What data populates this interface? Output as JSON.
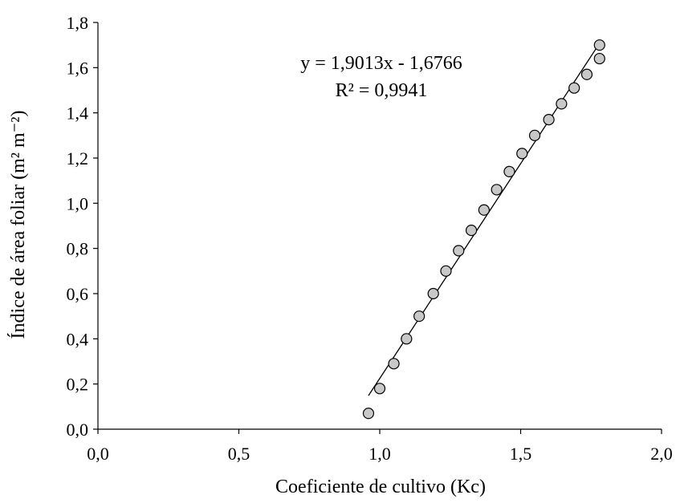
{
  "chart_data": {
    "type": "scatter",
    "xlabel": "Coeficiente de cultivo (Kc)",
    "ylabel": "Índice de área foliar (m² m⁻²)",
    "xlim": [
      0,
      2
    ],
    "ylim": [
      0,
      1.8
    ],
    "xticks": [
      0,
      0.5,
      1,
      1.5,
      2
    ],
    "xtick_labels": [
      "0,0",
      "0,5",
      "1,0",
      "1,5",
      "2,0"
    ],
    "yticks": [
      0,
      0.2,
      0.4,
      0.6,
      0.8,
      1.0,
      1.2,
      1.4,
      1.6,
      1.8
    ],
    "ytick_labels": [
      "0,0",
      "0,2",
      "0,4",
      "0,6",
      "0,8",
      "1,0",
      "1,2",
      "1,4",
      "1,6",
      "1,8"
    ],
    "grid": false,
    "legend": "none",
    "marker_color": "#c8c8c8",
    "series": [
      {
        "x": [
          0.96,
          1.0,
          1.05,
          1.095,
          1.14,
          1.19,
          1.235,
          1.28,
          1.325,
          1.37,
          1.415,
          1.46,
          1.505,
          1.55,
          1.6,
          1.645,
          1.69,
          1.735,
          1.78,
          1.78
        ],
        "y": [
          0.07,
          0.18,
          0.29,
          0.4,
          0.5,
          0.6,
          0.7,
          0.79,
          0.88,
          0.97,
          1.06,
          1.14,
          1.22,
          1.3,
          1.37,
          1.44,
          1.51,
          1.57,
          1.64,
          1.7
        ]
      }
    ],
    "trendline": {
      "slope": 1.9013,
      "intercept": -1.6766,
      "x_range": [
        0.96,
        1.78
      ],
      "equation": "y = 1,9013x - 1,6766",
      "r2": "R² = 0,9941"
    }
  }
}
